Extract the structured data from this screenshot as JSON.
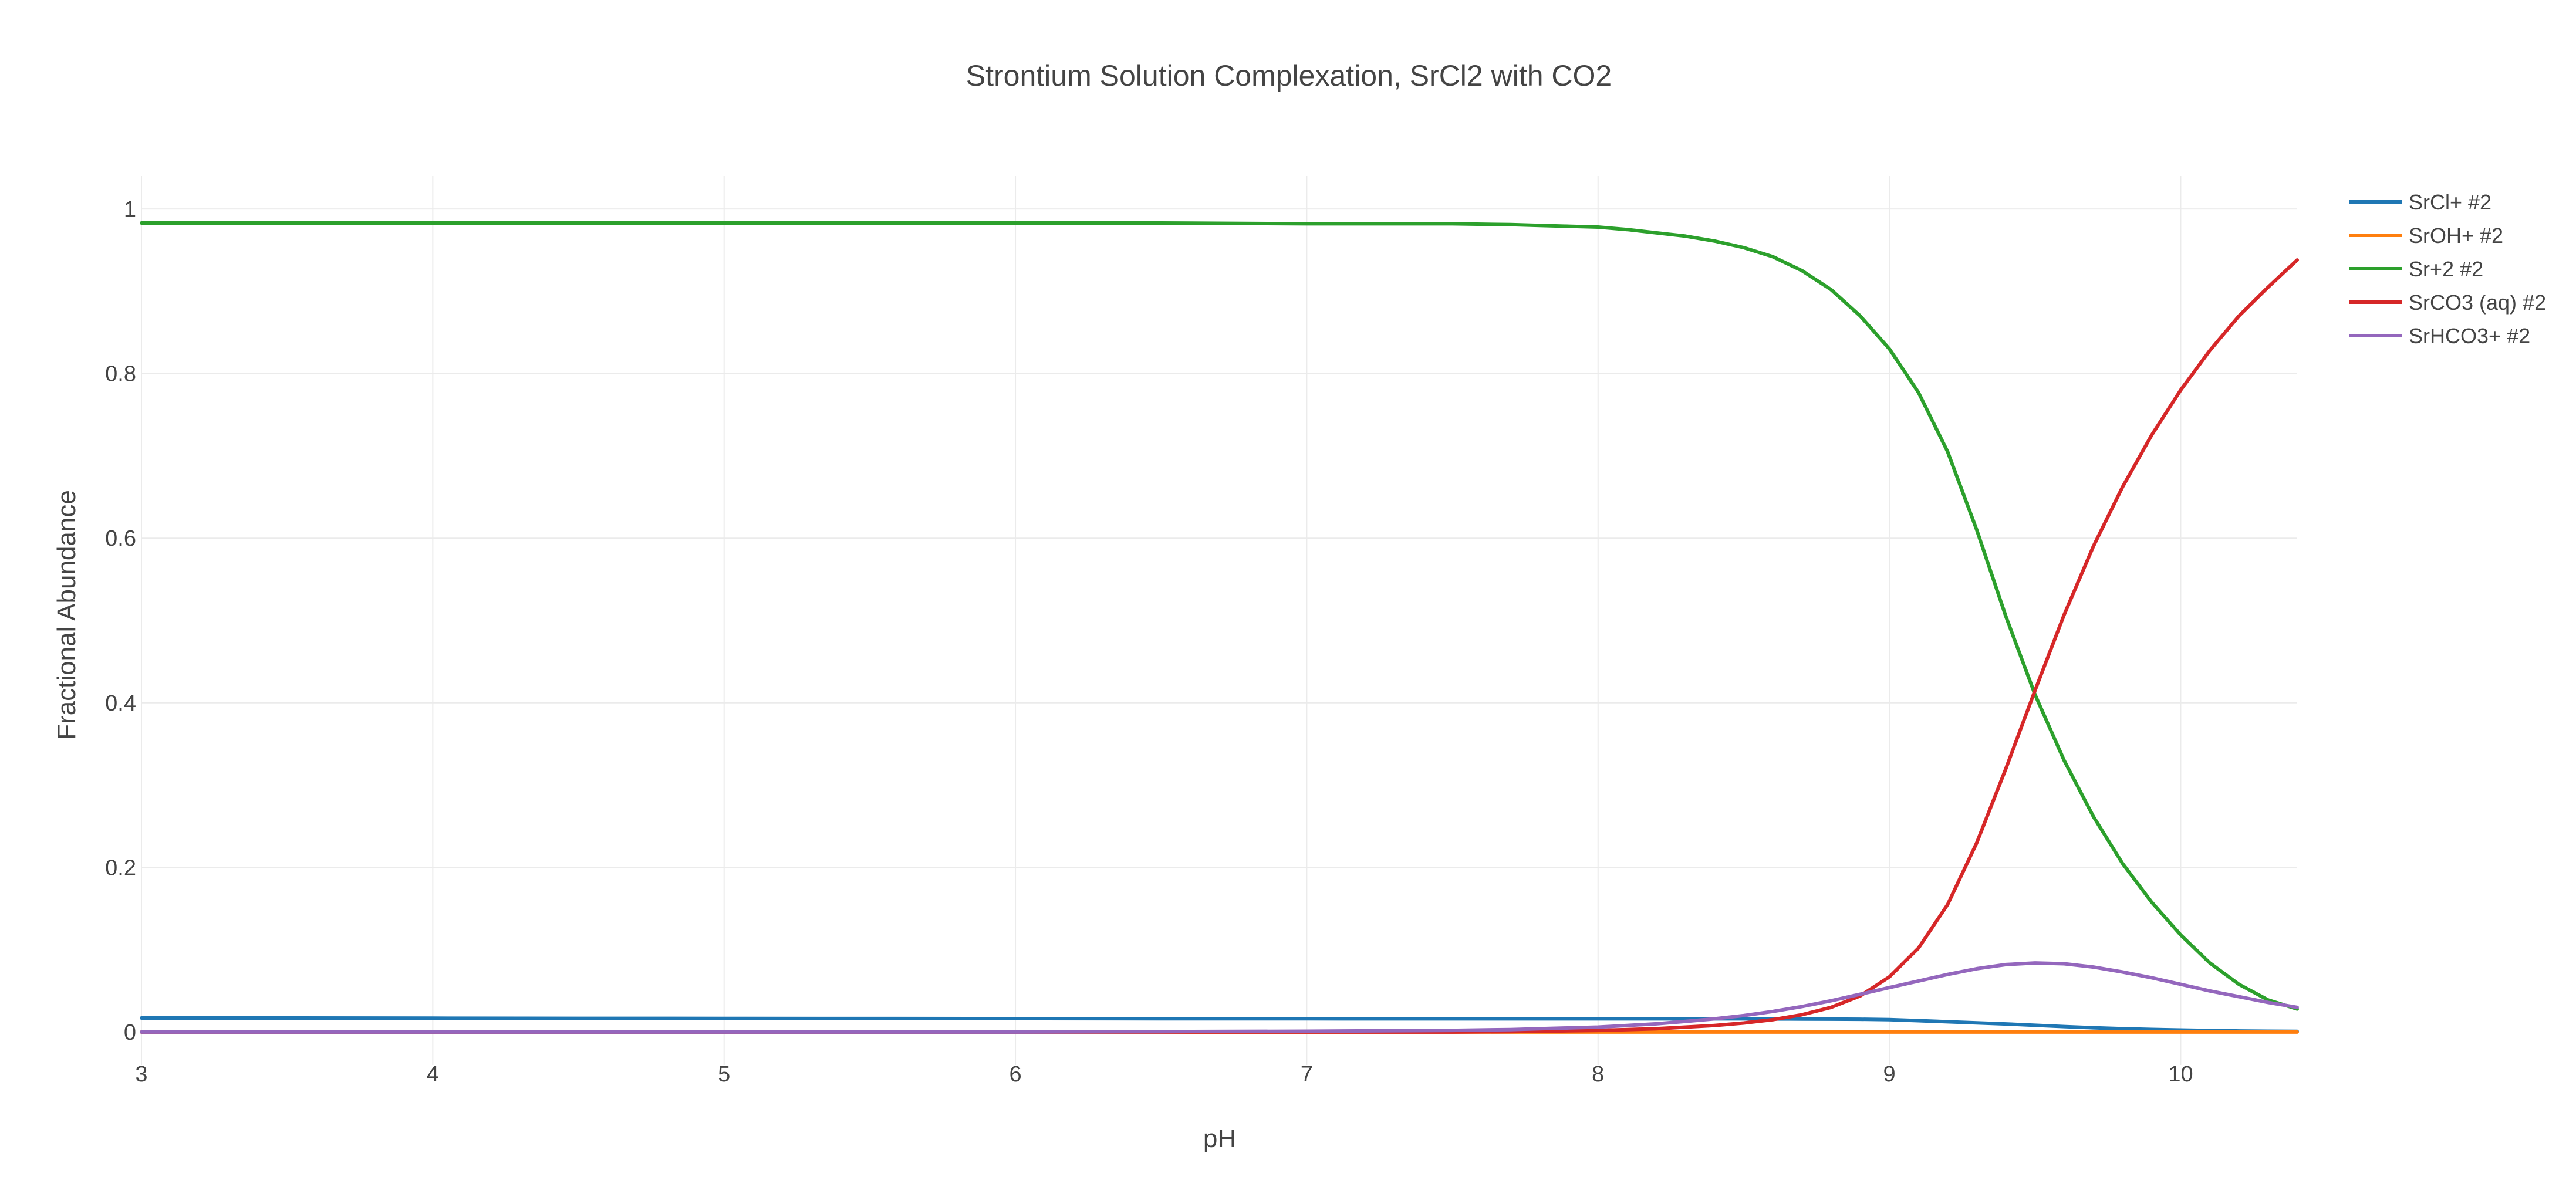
{
  "chart_data": {
    "type": "line",
    "title": "Strontium Solution Complexation, SrCl2 with CO2",
    "xlabel": "pH",
    "ylabel": "Fractional Abundance",
    "xlim": [
      3,
      10.4
    ],
    "ylim": [
      -0.04,
      1.04
    ],
    "xticks": [
      3,
      4,
      5,
      6,
      7,
      8,
      9,
      10
    ],
    "xtick_labels": [
      "3",
      "4",
      "5",
      "6",
      "7",
      "8",
      "9",
      "10"
    ],
    "yticks": [
      0,
      0.2,
      0.4,
      0.6,
      0.8,
      1
    ],
    "ytick_labels": [
      "0",
      "0.2",
      "0.4",
      "0.6",
      "0.8",
      "1"
    ],
    "grid": true,
    "legend_position": "top-right",
    "x": [
      3,
      3.5,
      4,
      4.5,
      5,
      5.5,
      6,
      6.5,
      7,
      7.5,
      7.7,
      7.8,
      7.9,
      8,
      8.1,
      8.2,
      8.3,
      8.4,
      8.5,
      8.6,
      8.7,
      8.8,
      8.9,
      9,
      9.1,
      9.2,
      9.3,
      9.4,
      9.5,
      9.6,
      9.7,
      9.8,
      9.9,
      10,
      10.1,
      10.2,
      10.3,
      10.4
    ],
    "series": [
      {
        "name": "SrCl+ #2",
        "color": "#1f77b4",
        "values": [
          0.017,
          0.017,
          0.0168,
          0.0166,
          0.0165,
          0.0164,
          0.0163,
          0.0162,
          0.0161,
          0.016,
          0.016,
          0.016,
          0.016,
          0.016,
          0.016,
          0.016,
          0.016,
          0.016,
          0.016,
          0.0159,
          0.0158,
          0.0157,
          0.0155,
          0.015,
          0.0138,
          0.0125,
          0.0112,
          0.0098,
          0.0082,
          0.0066,
          0.0052,
          0.004,
          0.0031,
          0.0024,
          0.0018,
          0.0013,
          0.001,
          0.0008
        ]
      },
      {
        "name": "SrOH+ #2",
        "color": "#ff7f0e",
        "values": [
          0,
          0,
          0,
          0,
          0,
          0,
          0,
          0,
          0,
          0,
          0,
          0,
          0,
          0,
          0,
          0,
          0,
          0,
          0,
          0,
          0,
          0,
          0,
          0,
          0,
          0,
          0,
          0,
          0,
          0,
          0,
          0,
          0,
          0,
          0,
          0,
          0,
          0
        ]
      },
      {
        "name": "Sr+2 #2",
        "color": "#2ca02c",
        "values": [
          0.983,
          0.983,
          0.983,
          0.983,
          0.983,
          0.983,
          0.983,
          0.983,
          0.982,
          0.982,
          0.981,
          0.98,
          0.979,
          0.978,
          0.975,
          0.971,
          0.967,
          0.961,
          0.953,
          0.942,
          0.925,
          0.902,
          0.87,
          0.83,
          0.777,
          0.705,
          0.61,
          0.505,
          0.41,
          0.33,
          0.262,
          0.205,
          0.158,
          0.118,
          0.084,
          0.058,
          0.039,
          0.028
        ]
      },
      {
        "name": "SrCO3 (aq) #2",
        "color": "#d62728",
        "values": [
          0,
          0,
          0,
          0,
          0,
          0,
          0,
          0,
          0,
          0,
          0.0005,
          0.001,
          0.0015,
          0.002,
          0.003,
          0.004,
          0.006,
          0.008,
          0.011,
          0.015,
          0.021,
          0.03,
          0.044,
          0.067,
          0.102,
          0.155,
          0.23,
          0.32,
          0.415,
          0.507,
          0.59,
          0.662,
          0.725,
          0.78,
          0.828,
          0.87,
          0.905,
          0.938
        ]
      },
      {
        "name": "SrHCO3+ #2",
        "color": "#9467bd",
        "values": [
          0,
          0,
          0,
          0,
          0,
          0,
          0,
          0.0005,
          0.001,
          0.002,
          0.003,
          0.004,
          0.005,
          0.006,
          0.008,
          0.01,
          0.013,
          0.016,
          0.02,
          0.025,
          0.031,
          0.038,
          0.046,
          0.054,
          0.062,
          0.07,
          0.077,
          0.082,
          0.084,
          0.083,
          0.079,
          0.073,
          0.066,
          0.058,
          0.05,
          0.043,
          0.036,
          0.03
        ]
      }
    ]
  }
}
